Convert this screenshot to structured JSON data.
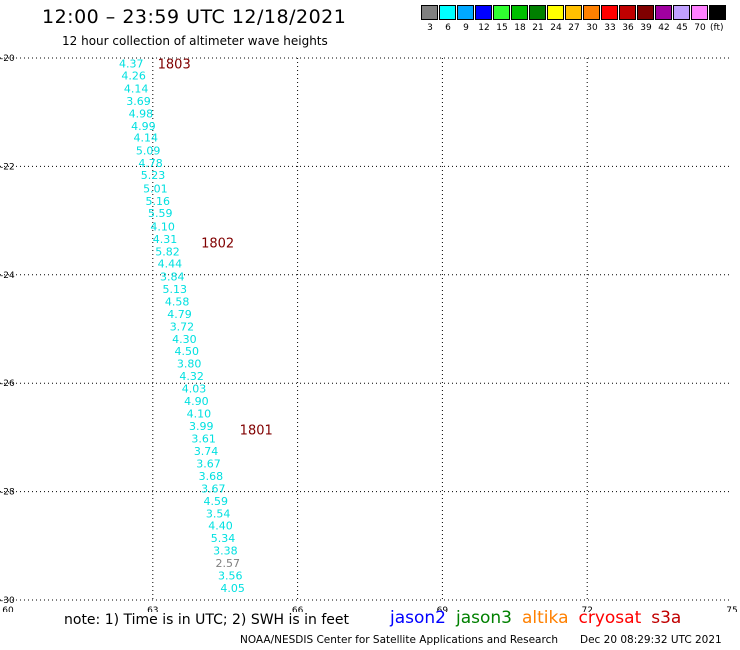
{
  "title": "12:00 – 23:59 UTC 12/18/2021",
  "subtitle": "12 hour collection of altimeter wave heights",
  "legend": {
    "items": [
      {
        "label": "3",
        "color": "#808080"
      },
      {
        "label": "6",
        "color": "#00ffff"
      },
      {
        "label": "9",
        "color": "#00a8ff"
      },
      {
        "label": "12",
        "color": "#0000ff"
      },
      {
        "label": "15",
        "color": "#30ff30"
      },
      {
        "label": "18",
        "color": "#00c000"
      },
      {
        "label": "21",
        "color": "#008000"
      },
      {
        "label": "24",
        "color": "#ffff00"
      },
      {
        "label": "27",
        "color": "#ffc000"
      },
      {
        "label": "30",
        "color": "#ff8000"
      },
      {
        "label": "33",
        "color": "#ff0000"
      },
      {
        "label": "36",
        "color": "#c00000"
      },
      {
        "label": "39",
        "color": "#800000"
      },
      {
        "label": "42",
        "color": "#a000a0"
      },
      {
        "label": "45",
        "color": "#c0a0ff"
      },
      {
        "label": "70",
        "color": "#ff80ff"
      },
      {
        "label": "",
        "color": "#000000"
      }
    ],
    "unit": "(ft)"
  },
  "note": "note: 1) Time is in UTC; 2) SWH is in feet",
  "satellites": [
    {
      "name": "jason2",
      "color": "#0000ff"
    },
    {
      "name": "jason3",
      "color": "#008000"
    },
    {
      "name": "altika",
      "color": "#ff8000"
    },
    {
      "name": "cryosat",
      "color": "#ff0000"
    },
    {
      "name": "s3a",
      "color": "#c00000"
    }
  ],
  "credit": "NOAA/NESDIS Center for Satellite Applications and Research",
  "timestamp": "Dec 20 08:29:32 UTC 2021",
  "chart_data": {
    "type": "scatter",
    "xlim": [
      60,
      75
    ],
    "ylim": [
      -30,
      -20
    ],
    "xticks": [
      "60",
      "63",
      "66",
      "69",
      "72",
      "75"
    ],
    "yticks": [
      "-20",
      "-22",
      "-24",
      "-26",
      "-28",
      "-30"
    ],
    "xtick_values": [
      60,
      63,
      66,
      69,
      72,
      75
    ],
    "ytick_values": [
      -20,
      -22,
      -24,
      -26,
      -28,
      -30
    ],
    "grid": true,
    "time_labels": [
      {
        "label": "1803",
        "x": 63.1,
        "y": -20.1,
        "color": "#800000"
      },
      {
        "label": "1802",
        "x": 64.0,
        "y": -23.4,
        "color": "#800000"
      },
      {
        "label": "1801",
        "x": 64.8,
        "y": -26.85,
        "color": "#800000"
      }
    ],
    "points": [
      {
        "x": 62.3,
        "y": -20.1,
        "value": "4.37",
        "color": "#00e0e0"
      },
      {
        "x": 62.35,
        "y": -20.32,
        "value": "4.26",
        "color": "#00e0e0"
      },
      {
        "x": 62.4,
        "y": -20.56,
        "value": "4.14",
        "color": "#00e0e0"
      },
      {
        "x": 62.45,
        "y": -20.79,
        "value": "3.69",
        "color": "#00e0e0"
      },
      {
        "x": 62.5,
        "y": -21.02,
        "value": "4.98",
        "color": "#00e0e0"
      },
      {
        "x": 62.55,
        "y": -21.25,
        "value": "4.99",
        "color": "#00e0e0"
      },
      {
        "x": 62.6,
        "y": -21.47,
        "value": "4.14",
        "color": "#00e0e0"
      },
      {
        "x": 62.65,
        "y": -21.71,
        "value": "5.09",
        "color": "#00e0e0"
      },
      {
        "x": 62.7,
        "y": -21.94,
        "value": "4.78",
        "color": "#00e0e0"
      },
      {
        "x": 62.75,
        "y": -22.16,
        "value": "5.23",
        "color": "#00e0e0"
      },
      {
        "x": 62.8,
        "y": -22.41,
        "value": "5.01",
        "color": "#00e0e0"
      },
      {
        "x": 62.85,
        "y": -22.64,
        "value": "5.16",
        "color": "#00e0e0"
      },
      {
        "x": 62.9,
        "y": -22.86,
        "value": "5.59",
        "color": "#00e0e0"
      },
      {
        "x": 62.95,
        "y": -23.11,
        "value": "4.10",
        "color": "#00e0e0"
      },
      {
        "x": 63.0,
        "y": -23.34,
        "value": "4.31",
        "color": "#00e0e0"
      },
      {
        "x": 63.05,
        "y": -23.57,
        "value": "5.82",
        "color": "#00e0e0"
      },
      {
        "x": 63.1,
        "y": -23.79,
        "value": "4.44",
        "color": "#00e0e0"
      },
      {
        "x": 63.15,
        "y": -24.03,
        "value": "3.84",
        "color": "#00e0e0"
      },
      {
        "x": 63.2,
        "y": -24.26,
        "value": "5.13",
        "color": "#00e0e0"
      },
      {
        "x": 63.25,
        "y": -24.49,
        "value": "4.58",
        "color": "#00e0e0"
      },
      {
        "x": 63.3,
        "y": -24.72,
        "value": "4.79",
        "color": "#00e0e0"
      },
      {
        "x": 63.35,
        "y": -24.95,
        "value": "3.72",
        "color": "#00e0e0"
      },
      {
        "x": 63.4,
        "y": -25.18,
        "value": "4.30",
        "color": "#00e0e0"
      },
      {
        "x": 63.45,
        "y": -25.41,
        "value": "4.50",
        "color": "#00e0e0"
      },
      {
        "x": 63.5,
        "y": -25.64,
        "value": "3.80",
        "color": "#00e0e0"
      },
      {
        "x": 63.55,
        "y": -25.87,
        "value": "4.32",
        "color": "#00e0e0"
      },
      {
        "x": 63.6,
        "y": -26.1,
        "value": "4.03",
        "color": "#00e0e0"
      },
      {
        "x": 63.65,
        "y": -26.33,
        "value": "4.90",
        "color": "#00e0e0"
      },
      {
        "x": 63.7,
        "y": -26.56,
        "value": "4.10",
        "color": "#00e0e0"
      },
      {
        "x": 63.75,
        "y": -26.79,
        "value": "3.99",
        "color": "#00e0e0"
      },
      {
        "x": 63.8,
        "y": -27.02,
        "value": "3.61",
        "color": "#00e0e0"
      },
      {
        "x": 63.85,
        "y": -27.25,
        "value": "3.74",
        "color": "#00e0e0"
      },
      {
        "x": 63.9,
        "y": -27.48,
        "value": "3.67",
        "color": "#00e0e0"
      },
      {
        "x": 63.95,
        "y": -27.71,
        "value": "3.68",
        "color": "#00e0e0"
      },
      {
        "x": 64.0,
        "y": -27.94,
        "value": "3.67",
        "color": "#00e0e0"
      },
      {
        "x": 64.05,
        "y": -28.17,
        "value": "4.59",
        "color": "#00e0e0"
      },
      {
        "x": 64.1,
        "y": -28.4,
        "value": "3.54",
        "color": "#00e0e0"
      },
      {
        "x": 64.15,
        "y": -28.63,
        "value": "4.40",
        "color": "#00e0e0"
      },
      {
        "x": 64.2,
        "y": -28.86,
        "value": "5.34",
        "color": "#00e0e0"
      },
      {
        "x": 64.25,
        "y": -29.09,
        "value": "3.38",
        "color": "#00e0e0"
      },
      {
        "x": 64.3,
        "y": -29.32,
        "value": "2.57",
        "color": "#808080"
      },
      {
        "x": 64.35,
        "y": -29.55,
        "value": "3.56",
        "color": "#00e0e0"
      },
      {
        "x": 64.4,
        "y": -29.78,
        "value": "4.05",
        "color": "#00e0e0"
      }
    ]
  }
}
